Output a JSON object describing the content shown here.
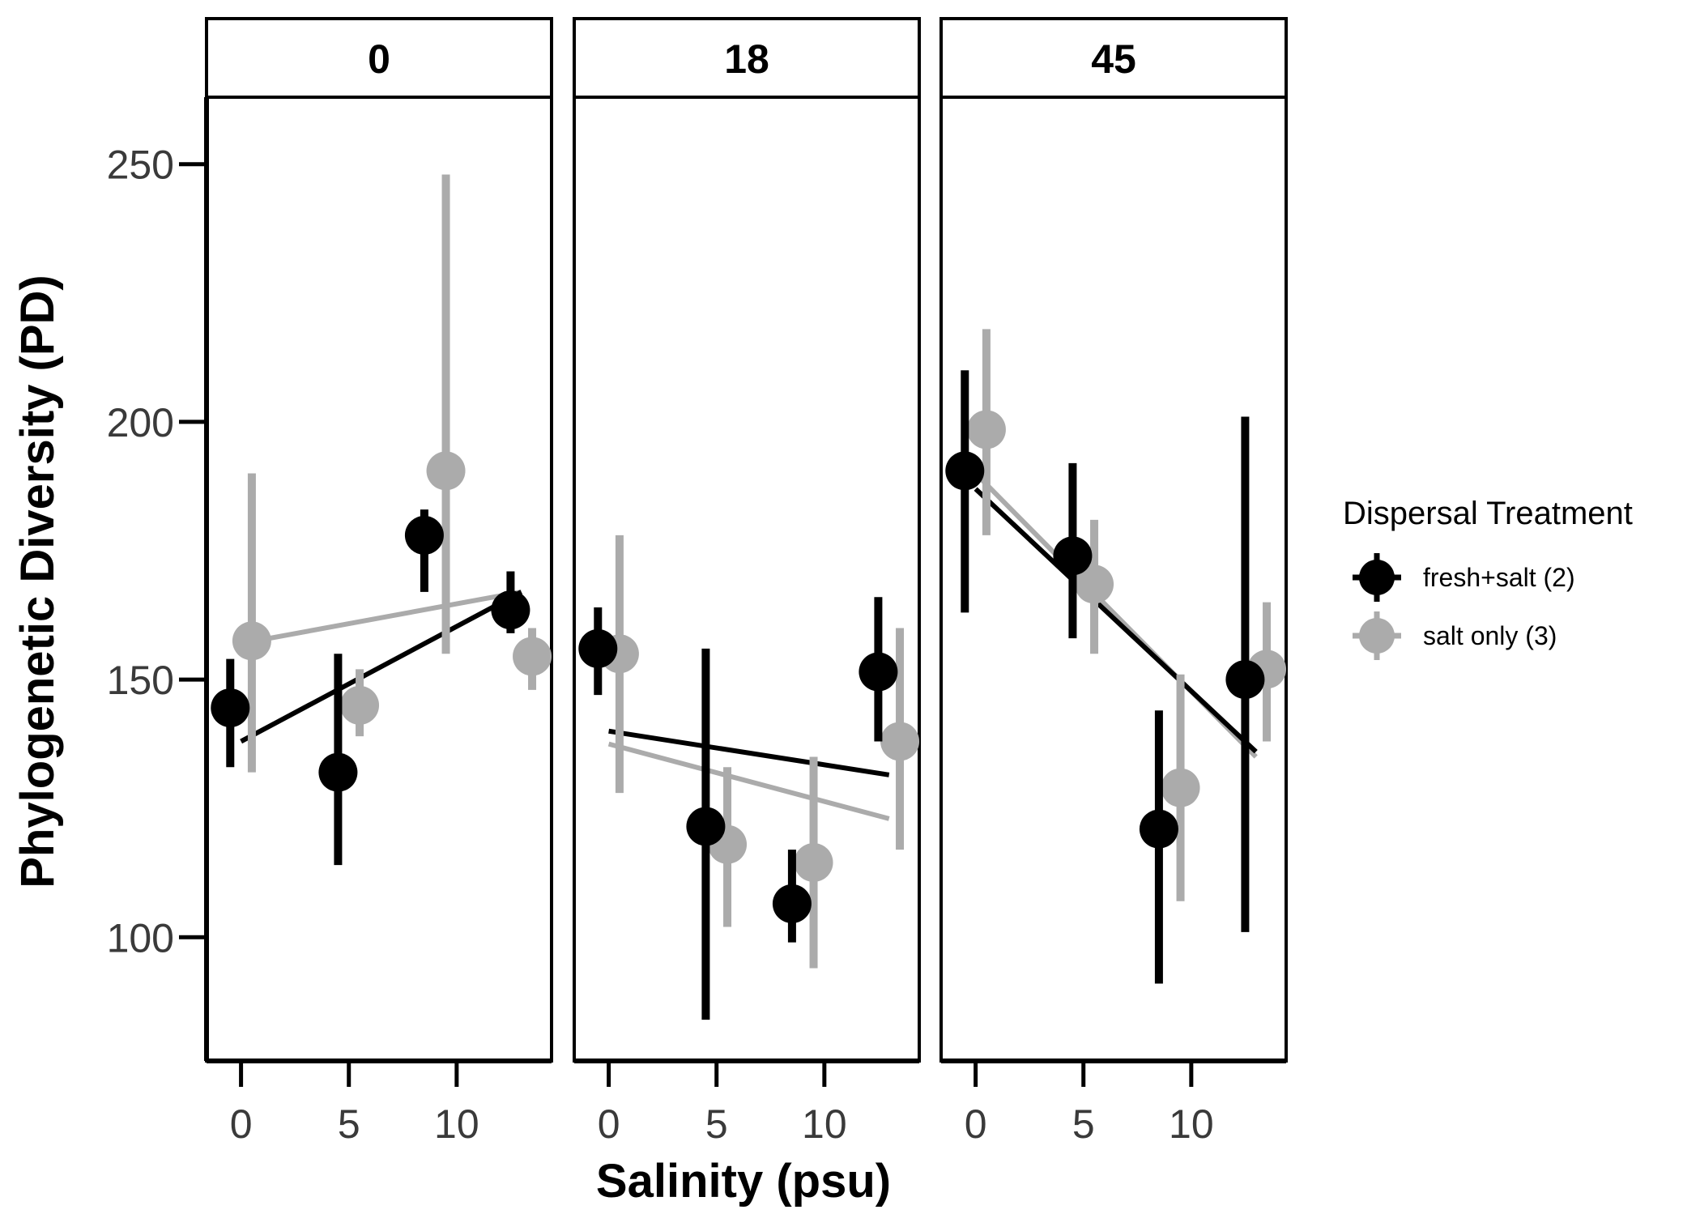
{
  "chart_data": {
    "type": "scatter",
    "facets": [
      "0",
      "18",
      "45"
    ],
    "xlabel": "Salinity (psu)",
    "ylabel": "Phylogenetic Diversity (PD)",
    "xticks": [
      0,
      5,
      10
    ],
    "yticks": [
      100,
      150,
      200,
      250
    ],
    "xlim": [
      -1.6,
      14.4
    ],
    "ylim": [
      76,
      263
    ],
    "legend": {
      "title": "Dispersal Treatment",
      "position": "right"
    },
    "grid": false,
    "series": [
      {
        "name": "fresh+salt (2)",
        "color": "#000000",
        "panels": [
          {
            "points": [
              {
                "x": -0.5,
                "y": 144.5,
                "lo": 133,
                "hi": 154
              },
              {
                "x": 4.5,
                "y": 132,
                "lo": 114,
                "hi": 155
              },
              {
                "x": 8.5,
                "y": 178,
                "lo": 167,
                "hi": 183
              },
              {
                "x": 12.5,
                "y": 163.5,
                "lo": 159,
                "hi": 171
              }
            ],
            "fit": [
              {
                "x": 0,
                "y": 138
              },
              {
                "x": 13,
                "y": 167
              }
            ]
          },
          {
            "points": [
              {
                "x": -0.5,
                "y": 156,
                "lo": 147,
                "hi": 164
              },
              {
                "x": 4.5,
                "y": 121.5,
                "lo": 84,
                "hi": 156
              },
              {
                "x": 8.5,
                "y": 106.5,
                "lo": 99,
                "hi": 117
              },
              {
                "x": 12.5,
                "y": 151.5,
                "lo": 138,
                "hi": 166
              }
            ],
            "fit": [
              {
                "x": 0,
                "y": 140
              },
              {
                "x": 13,
                "y": 131.5
              }
            ]
          },
          {
            "points": [
              {
                "x": -0.5,
                "y": 190.5,
                "lo": 163,
                "hi": 210
              },
              {
                "x": 4.5,
                "y": 174,
                "lo": 158,
                "hi": 192
              },
              {
                "x": 8.5,
                "y": 121,
                "lo": 91,
                "hi": 144
              },
              {
                "x": 12.5,
                "y": 150,
                "lo": 101,
                "hi": 201
              }
            ],
            "fit": [
              {
                "x": 0,
                "y": 187
              },
              {
                "x": 13,
                "y": 136
              }
            ]
          }
        ]
      },
      {
        "name": "salt only (3)",
        "color": "#ababab",
        "panels": [
          {
            "points": [
              {
                "x": 0.5,
                "y": 157.5,
                "lo": 132,
                "hi": 190
              },
              {
                "x": 5.5,
                "y": 145,
                "lo": 139,
                "hi": 152
              },
              {
                "x": 9.5,
                "y": 190.5,
                "lo": 155,
                "hi": 248
              },
              {
                "x": 13.5,
                "y": 154.5,
                "lo": 148,
                "hi": 160
              }
            ],
            "fit": [
              {
                "x": 0,
                "y": 157
              },
              {
                "x": 13,
                "y": 167
              }
            ]
          },
          {
            "points": [
              {
                "x": 0.5,
                "y": 155,
                "lo": 128,
                "hi": 178
              },
              {
                "x": 5.5,
                "y": 118,
                "lo": 102,
                "hi": 133
              },
              {
                "x": 9.5,
                "y": 114.5,
                "lo": 94,
                "hi": 135
              },
              {
                "x": 13.5,
                "y": 138,
                "lo": 117,
                "hi": 160
              }
            ],
            "fit": [
              {
                "x": 0,
                "y": 137.5
              },
              {
                "x": 13,
                "y": 123
              }
            ]
          },
          {
            "points": [
              {
                "x": 0.5,
                "y": 198.5,
                "lo": 178,
                "hi": 218
              },
              {
                "x": 5.5,
                "y": 168.5,
                "lo": 155,
                "hi": 181
              },
              {
                "x": 9.5,
                "y": 129,
                "lo": 107,
                "hi": 151
              },
              {
                "x": 13.5,
                "y": 152,
                "lo": 138,
                "hi": 165
              }
            ],
            "fit": [
              {
                "x": 0,
                "y": 190
              },
              {
                "x": 13,
                "y": 135
              }
            ]
          }
        ]
      }
    ]
  }
}
